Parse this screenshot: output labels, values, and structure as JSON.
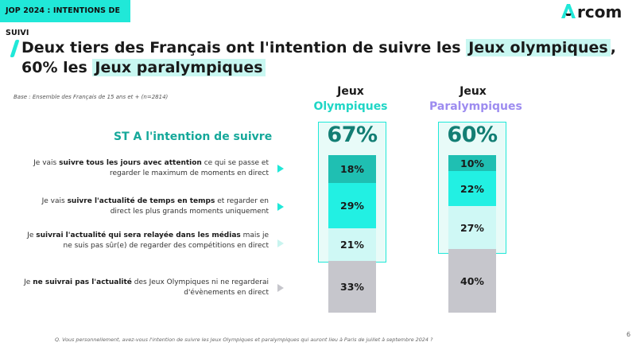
{
  "header": {
    "tag_label": "JOP 2024 : INTENTIONS DE SUIVI",
    "logo_text": "Arcom"
  },
  "title": {
    "line1_pre": "Deux tiers des Français ont l'intention de suivre les ",
    "line1_hl": "Jeux olympiques",
    "line1_post": ",",
    "line2_pre": "60% les ",
    "line2_hl": "Jeux paralympiques"
  },
  "base_note": "Base : Ensemble des Français de 15 ans et + (n=2814)",
  "st_label": "ST A l'intention de suivre",
  "rows": [
    {
      "pre": "Je vais ",
      "bold": "suivre tous les jours avec attention",
      "post": " ce qui se passe et regarder le maximum de moments en direct"
    },
    {
      "pre": "Je vais ",
      "bold": "suivre l'actualité de temps en temps",
      "post": " et regarder en direct les plus grands moments uniquement"
    },
    {
      "pre": "Je ",
      "bold": "suivrai l'actualité qui sera relayée dans les médias",
      "post": " mais je ne suis pas sûr(e) de regarder des compétitions en direct"
    },
    {
      "pre": "Je ",
      "bold": "ne suivrai pas l'actualité",
      "post": " des Jeux Olympiques ni ne regarderai d'évènements en direct"
    }
  ],
  "colors": {
    "accent": "#20e8d8",
    "dark_teal": "#137e74",
    "olympic_label": "#20d6c6",
    "para_label": "#9d8cf0",
    "seg1": "#1fbfb2",
    "seg2": "#22f0e3",
    "seg3": "#cff8f5",
    "seg4": "#c6c6cc"
  },
  "question": "Q. Vous personnellement, avez-vous l'intention de suivre les Jeux Olympiques et paralympiques qui auront lieu à Paris de juillet à septembre 2024 ?",
  "page_number": "6",
  "chart_data": {
    "type": "bar",
    "stacked": true,
    "categories": [
      "Jeux Olympiques",
      "Jeux Paralympiques"
    ],
    "category_lines": [
      [
        "Jeux",
        "Olympiques"
      ],
      [
        "Jeux",
        "Paralympiques"
      ]
    ],
    "series": [
      {
        "values": [
          18,
          10
        ]
      },
      {
        "values": [
          29,
          22
        ]
      },
      {
        "values": [
          21,
          27
        ]
      },
      {
        "values": [
          33,
          40
        ]
      }
    ],
    "value_labels": [
      [
        "18%",
        "29%",
        "21%",
        "33%"
      ],
      [
        "10%",
        "22%",
        "27%",
        "40%"
      ]
    ],
    "subtotal_label": "ST A l'intention de suivre",
    "subtotals": [
      "67%",
      "60%"
    ],
    "subtotal_values": [
      67,
      60
    ],
    "ylim": [
      0,
      100
    ]
  }
}
